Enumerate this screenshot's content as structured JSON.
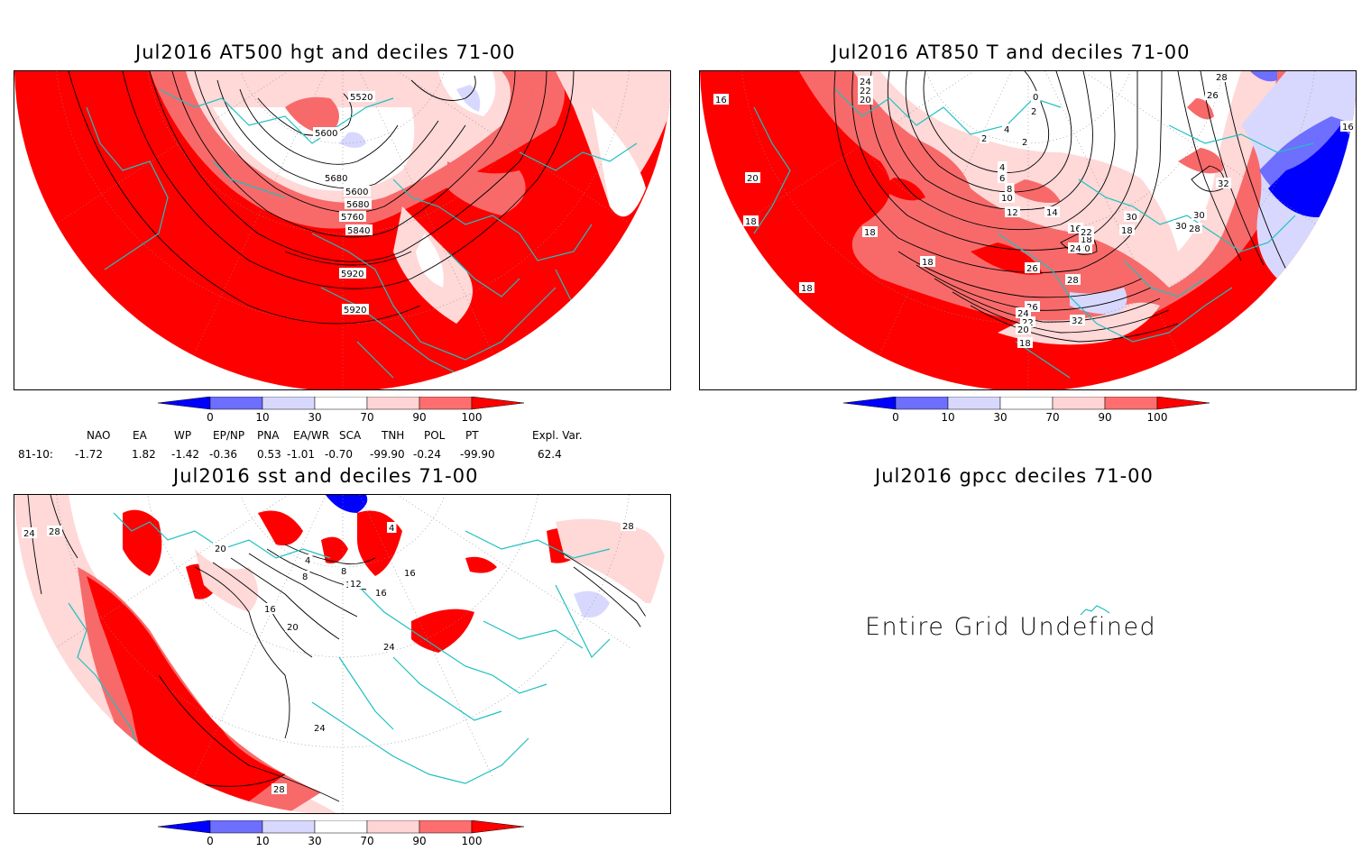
{
  "panels": {
    "p1": {
      "title": "Jul2016 AT500 hgt and deciles 71-00",
      "contour_labels": [
        "5520",
        "5600",
        "5680",
        "5600",
        "5680",
        "5760",
        "5840",
        "5920",
        "5920"
      ]
    },
    "p2": {
      "title": "Jul2016 AT850 T and deciles 71-00",
      "contour_labels": [
        "16",
        "24",
        "22",
        "20",
        "0",
        "2",
        "4",
        "2",
        "2",
        "4",
        "6",
        "8",
        "10",
        "12",
        "14",
        "16",
        "18",
        "20",
        "22",
        "24",
        "26",
        "28",
        "30",
        "32",
        "26",
        "28",
        "30",
        "26",
        "24",
        "22",
        "20",
        "18",
        "18",
        "18",
        "18",
        "16",
        "20",
        "18",
        "32",
        "28",
        "30",
        "18"
      ]
    },
    "p3": {
      "title": "Jul2016 sst and deciles 71-00",
      "contour_labels": [
        "24",
        "28",
        "20",
        "4",
        "8",
        "12",
        "16",
        "20",
        "24",
        "24",
        "28",
        "28",
        "16",
        "4",
        "8",
        "12",
        "16"
      ]
    },
    "p4": {
      "title": "Jul2016 gpcc deciles 71-00",
      "message": "Entire Grid Undefined"
    }
  },
  "colorbar": {
    "labels": [
      "0",
      "10",
      "30",
      "70",
      "90",
      "100"
    ],
    "colors": [
      "#0000ff",
      "#6e6eff",
      "#d8d8ff",
      "#ffffff",
      "#ffd4d4",
      "#ff6e6e",
      "#ff0000"
    ]
  },
  "indices": {
    "headers": [
      "NAO",
      "EA",
      "WP",
      "EP/NP",
      "PNA",
      "EA/WR",
      "SCA",
      "TNH",
      "POL",
      "PT",
      "Expl. Var."
    ],
    "row_label": "81-10:",
    "values": [
      "-1.72",
      "1.82",
      "-1.42",
      "-0.36",
      "0.53",
      "-1.01",
      "-0.70",
      "-99.90",
      "-0.24",
      "-99.90",
      "62.4"
    ]
  },
  "colors": {
    "deep_red": "#ff0000",
    "mid_red": "#f86a6a",
    "light_red": "#ffd8d8",
    "light_blue": "#d8d8ff",
    "mid_blue": "#6e6eff",
    "deep_blue": "#0000ff",
    "coast": "#1fc0c0"
  }
}
